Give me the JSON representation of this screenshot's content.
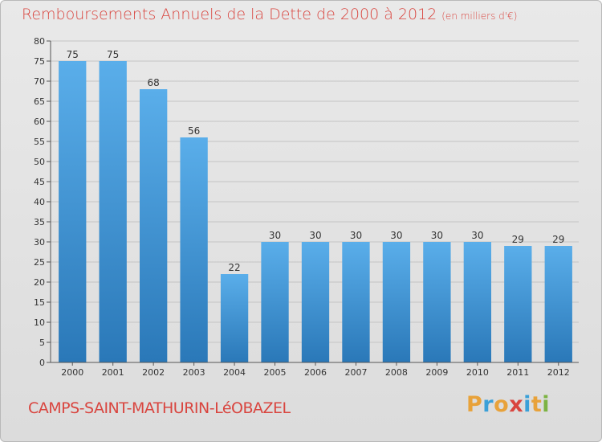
{
  "header": {
    "title": "Remboursements Annuels de la Dette de 2000 à 2012",
    "unit": "(en milliers d'€)"
  },
  "footer": {
    "commune": "CAMPS-SAINT-MATHURIN-LéOBAZEL",
    "logo": "Proxiti",
    "logo_colors": [
      "#e8a23a",
      "#3aa0d8",
      "#e8a23a",
      "#d9453f",
      "#3aa0d8",
      "#e8a23a",
      "#7cb342"
    ]
  },
  "chart_data": {
    "type": "bar",
    "title": "Remboursements Annuels de la Dette de 2000 à 2012",
    "categories": [
      "2000",
      "2001",
      "2002",
      "2003",
      "2004",
      "2005",
      "2006",
      "2007",
      "2008",
      "2009",
      "2010",
      "2011",
      "2012"
    ],
    "values": [
      75,
      75,
      68,
      56,
      22,
      30,
      30,
      30,
      30,
      30,
      30,
      29,
      29
    ],
    "ylim": [
      0,
      80
    ],
    "yticks": [
      0,
      5,
      10,
      15,
      20,
      25,
      30,
      35,
      40,
      45,
      50,
      55,
      60,
      65,
      70,
      75,
      80
    ],
    "grid": true,
    "bar_color_top": "#5aaeea",
    "bar_color_bottom": "#2a78b8"
  }
}
